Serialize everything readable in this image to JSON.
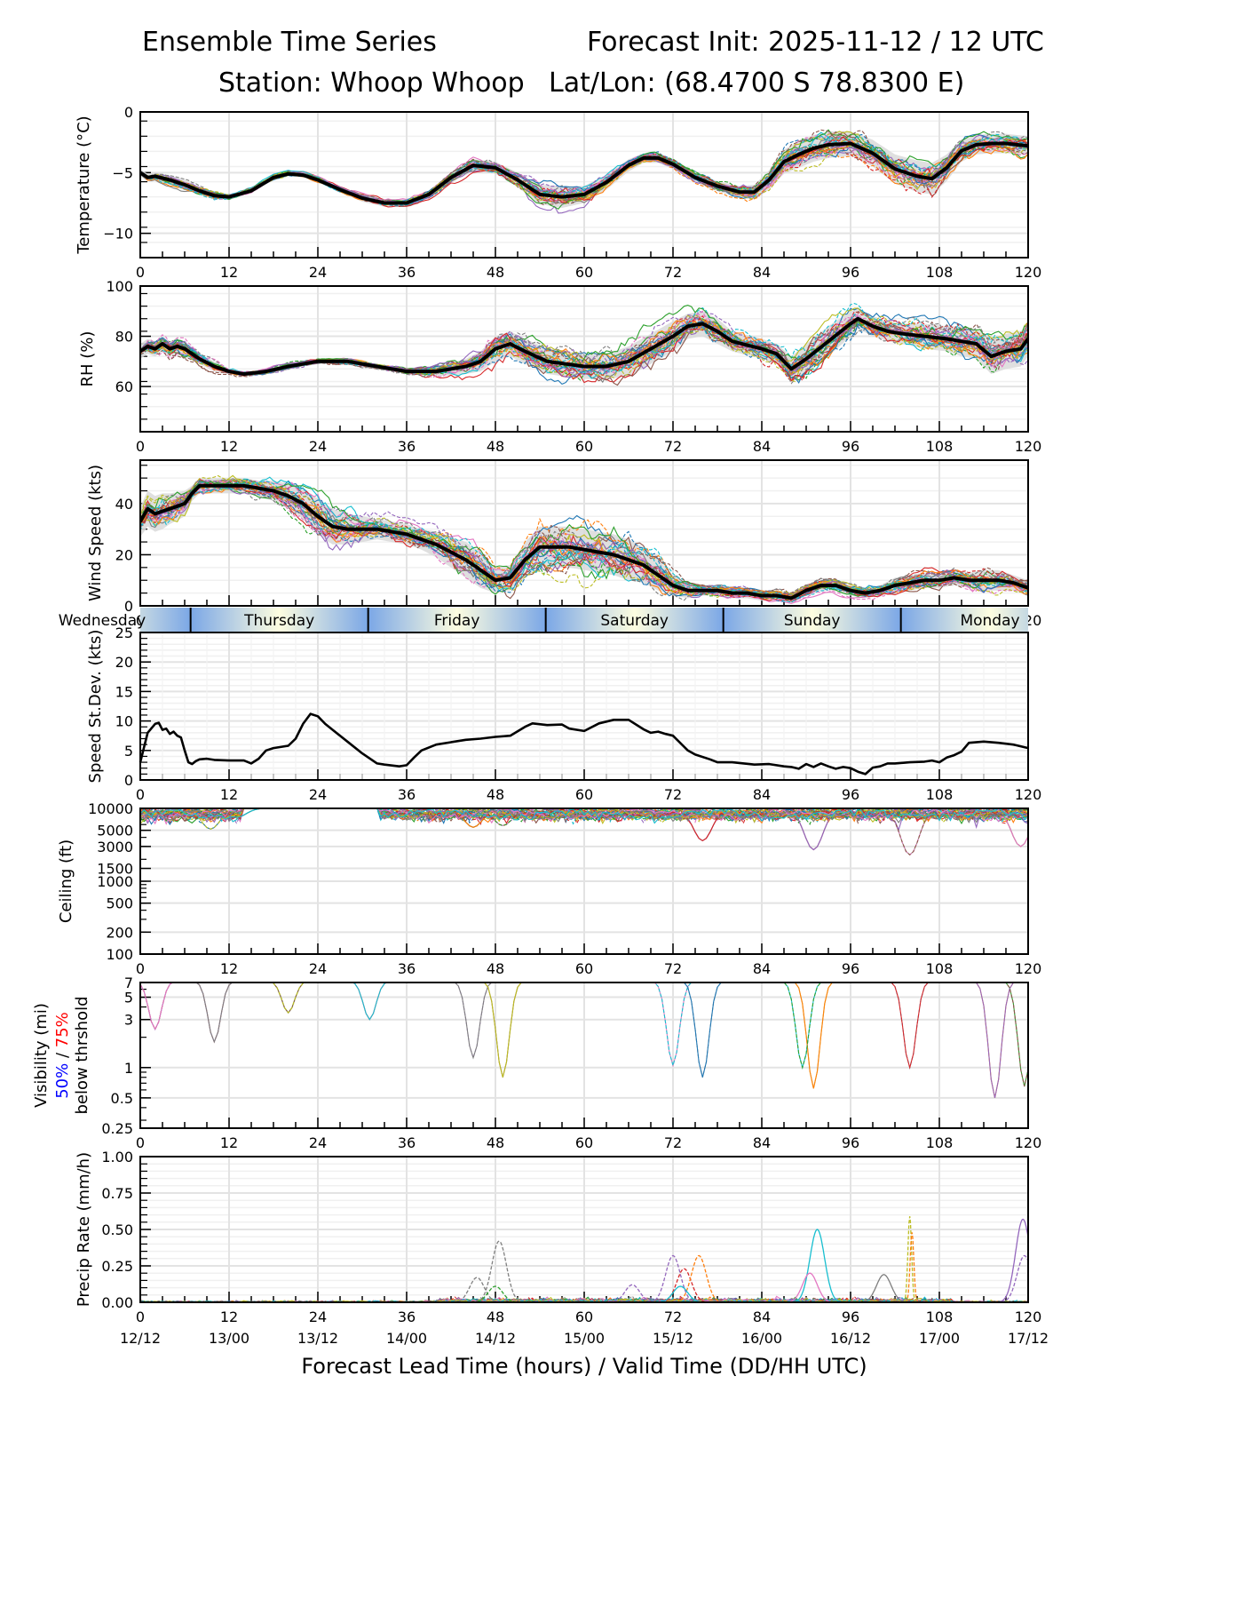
{
  "header": {
    "title_left": "Ensemble Time Series",
    "title_right": "Forecast Init: 2025-11-12 / 12 UTC",
    "station": "Station: Whoop Whoop",
    "latlon": "Lat/Lon: (68.4700 S 78.8300 E)"
  },
  "chart_data": [
    {
      "id": "temperature",
      "type": "line",
      "ylabel": "Temperature (°C)",
      "ylim": [
        -12,
        0
      ],
      "yticks": [
        0,
        -5,
        -10
      ],
      "ytick_labels": [
        "0",
        "−5",
        "−10"
      ],
      "xlim": [
        0,
        120
      ],
      "xticks": [
        0,
        12,
        24,
        36,
        48,
        60,
        72,
        84,
        96,
        108,
        120
      ],
      "grid": true,
      "mean": {
        "x": [
          0,
          1,
          2,
          4,
          6,
          8,
          10,
          12,
          15,
          18,
          20,
          22,
          24,
          27,
          30,
          33,
          36,
          39,
          42,
          45,
          48,
          51,
          54,
          57,
          60,
          63,
          66,
          68,
          70,
          72,
          75,
          78,
          81,
          83,
          85,
          87,
          89,
          91,
          93,
          96,
          99,
          102,
          105,
          107,
          109,
          111,
          113,
          115,
          117,
          120
        ],
        "y": [
          -5.0,
          -5.4,
          -5.3,
          -5.6,
          -6.0,
          -6.5,
          -6.9,
          -7.0,
          -6.5,
          -5.4,
          -5.1,
          -5.2,
          -5.6,
          -6.4,
          -7.1,
          -7.5,
          -7.5,
          -6.8,
          -5.4,
          -4.4,
          -4.6,
          -5.6,
          -6.8,
          -7.0,
          -6.8,
          -5.8,
          -4.4,
          -3.8,
          -3.8,
          -4.3,
          -5.4,
          -6.1,
          -6.6,
          -6.6,
          -5.6,
          -4.1,
          -3.5,
          -3.0,
          -2.7,
          -2.6,
          -3.4,
          -4.7,
          -5.3,
          -5.5,
          -4.6,
          -3.2,
          -2.7,
          -2.6,
          -2.6,
          -2.8
        ]
      },
      "spread_halfwidth": [
        0.3,
        0.3,
        0.3,
        0.4,
        0.4,
        0.3,
        0.3,
        0.2,
        0.2,
        0.2,
        0.2,
        0.2,
        0.2,
        0.2,
        0.3,
        0.3,
        0.3,
        0.3,
        0.4,
        0.5,
        0.5,
        0.6,
        0.8,
        0.9,
        0.7,
        0.6,
        0.5,
        0.4,
        0.4,
        0.4,
        0.4,
        0.4,
        0.5,
        0.6,
        0.8,
        1.0,
        1.1,
        1.1,
        1.1,
        1.0,
        1.1,
        1.2,
        1.3,
        1.3,
        1.1,
        0.9,
        0.8,
        0.8,
        0.8,
        0.8
      ],
      "member_count": 30,
      "members_note": "ensemble members drawn as thin colored solid/dashed lines around the mean"
    },
    {
      "id": "rh",
      "type": "line",
      "ylabel": "RH (%)",
      "ylim": [
        42,
        100
      ],
      "yticks": [
        60,
        80,
        100
      ],
      "ytick_labels": [
        "60",
        "80",
        "100"
      ],
      "xlim": [
        0,
        120
      ],
      "xticks": [
        0,
        12,
        24,
        36,
        48,
        60,
        72,
        84,
        96,
        108,
        120
      ],
      "grid": true,
      "mean": {
        "x": [
          0,
          1,
          2,
          3,
          4,
          5,
          6,
          8,
          10,
          12,
          14,
          17,
          20,
          24,
          28,
          32,
          36,
          40,
          44,
          46,
          48,
          50,
          52,
          55,
          60,
          63,
          66,
          69,
          72,
          74,
          76,
          78,
          80,
          84,
          86,
          88,
          90,
          93,
          96,
          97,
          99,
          101,
          103,
          106,
          109,
          111,
          113,
          115,
          117,
          119,
          120
        ],
        "y": [
          74,
          76,
          75,
          77,
          75,
          76,
          75,
          71,
          68,
          66,
          65,
          66,
          68,
          70,
          70,
          68,
          66,
          66,
          68,
          70,
          75,
          77,
          74,
          70,
          68,
          68,
          70,
          75,
          80,
          84,
          85,
          82,
          78,
          75,
          73,
          67,
          71,
          78,
          85,
          87,
          84,
          82,
          81,
          80,
          79,
          78,
          77,
          72,
          74,
          75,
          79
        ]
      },
      "spread_halfwidth": [
        3,
        3,
        3,
        3,
        3,
        3,
        3,
        2,
        2,
        1,
        1,
        1,
        1,
        1,
        1,
        1,
        1,
        2,
        3,
        4,
        5,
        5,
        5,
        5,
        5,
        5,
        6,
        6,
        6,
        5,
        5,
        5,
        4,
        4,
        4,
        5,
        6,
        6,
        5,
        4,
        4,
        4,
        4,
        5,
        5,
        6,
        6,
        7,
        7,
        7,
        7
      ],
      "member_count": 30
    },
    {
      "id": "wind_speed",
      "type": "line",
      "ylabel": "Wind Speed (kts)",
      "ylim": [
        0,
        57
      ],
      "yticks": [
        0,
        20,
        40
      ],
      "ytick_labels": [
        "0",
        "20",
        "40"
      ],
      "xlim": [
        0,
        120
      ],
      "xticks": [
        0,
        12,
        24,
        36,
        48,
        60,
        72,
        84,
        96,
        108,
        120
      ],
      "grid": true,
      "mean": {
        "x": [
          0,
          1,
          2,
          3,
          4,
          6,
          7,
          8,
          10,
          12,
          14,
          16,
          18,
          20,
          22,
          24,
          26,
          28,
          30,
          32,
          34,
          36,
          38,
          40,
          42,
          44,
          46,
          48,
          50,
          52,
          54,
          56,
          58,
          60,
          62,
          64,
          66,
          68,
          70,
          72,
          74,
          76,
          78,
          80,
          82,
          84,
          86,
          88,
          90,
          92,
          94,
          96,
          98,
          100,
          102,
          104,
          106,
          108,
          110,
          112,
          114,
          116,
          118,
          120
        ],
        "y": [
          33,
          38,
          36,
          37,
          38,
          40,
          44,
          47,
          47,
          47,
          47,
          46,
          45,
          43,
          40,
          35,
          31,
          30,
          30,
          30,
          29,
          28,
          26,
          24,
          21,
          18,
          14,
          10,
          11,
          18,
          23,
          23,
          23,
          22,
          21,
          20,
          18,
          16,
          12,
          8,
          6,
          6,
          6,
          5,
          5,
          4,
          4,
          3,
          6,
          8,
          8,
          6,
          5,
          6,
          8,
          9,
          10,
          10,
          11,
          10,
          10,
          10,
          9,
          7
        ]
      },
      "spread_halfwidth": [
        6,
        7,
        7,
        7,
        6,
        5,
        3,
        3,
        3,
        3,
        3,
        3,
        4,
        5,
        6,
        7,
        7,
        6,
        5,
        4,
        4,
        4,
        4,
        5,
        6,
        7,
        7,
        5,
        5,
        7,
        8,
        8,
        8,
        8,
        8,
        8,
        8,
        7,
        6,
        4,
        3,
        2,
        2,
        2,
        2,
        2,
        2,
        2,
        2,
        2,
        2,
        2,
        2,
        2,
        3,
        3,
        3,
        3,
        3,
        3,
        4,
        4,
        3,
        3
      ],
      "member_count": 30
    },
    {
      "id": "speed_stdev",
      "type": "line",
      "ylabel": "Speed St.Dev. (kts)",
      "ylim": [
        0,
        25
      ],
      "yticks": [
        0,
        5,
        10,
        15,
        20,
        25
      ],
      "ytick_labels": [
        "0",
        "5",
        "10",
        "15",
        "20",
        "25"
      ],
      "xlim": [
        0,
        120
      ],
      "xticks": [
        0,
        12,
        24,
        36,
        48,
        60,
        72,
        84,
        96,
        108,
        120
      ],
      "grid": true,
      "series": [
        {
          "name": "Speed St.Dev.",
          "x": [
            0,
            1,
            2,
            2.5,
            3,
            3.5,
            4,
            4.5,
            5,
            5.5,
            6,
            6.5,
            7,
            7.5,
            8,
            9,
            10,
            12,
            14,
            15,
            16,
            17,
            18,
            20,
            21,
            22,
            23,
            24,
            25,
            26,
            28,
            30,
            32,
            33,
            35,
            36,
            37,
            38,
            40,
            42,
            44,
            46,
            48,
            50,
            52,
            53,
            55,
            57,
            58,
            60,
            62,
            64,
            66,
            68,
            69,
            70,
            71,
            72,
            74,
            75,
            77,
            78,
            80,
            83,
            85,
            87,
            88,
            89,
            90,
            91,
            92,
            93,
            94,
            95,
            96,
            97,
            98,
            99,
            100,
            101,
            102,
            104,
            106,
            107,
            108,
            109,
            110,
            111,
            112,
            114,
            116,
            118,
            120
          ],
          "y": [
            3,
            8,
            9.5,
            9.7,
            8.5,
            8.7,
            7.8,
            8.2,
            7.5,
            7.2,
            5,
            3,
            2.7,
            3.2,
            3.5,
            3.6,
            3.4,
            3.3,
            3.3,
            2.8,
            3.6,
            5,
            5.4,
            5.8,
            7,
            9.5,
            11.2,
            10.8,
            9.5,
            8.5,
            6.5,
            4.5,
            2.8,
            2.6,
            2.3,
            2.5,
            3.8,
            5,
            6,
            6.4,
            6.8,
            7,
            7.3,
            7.5,
            9,
            9.6,
            9.3,
            9.4,
            8.7,
            8.3,
            9.6,
            10.2,
            10.2,
            8.6,
            8,
            8.2,
            7.8,
            7.5,
            5,
            4.3,
            3.5,
            3.0,
            3.0,
            2.6,
            2.7,
            2.3,
            2.2,
            1.9,
            2.7,
            2.2,
            2.8,
            2.3,
            1.9,
            2.2,
            2.0,
            1.4,
            1.0,
            2.1,
            2.3,
            2.8,
            2.8,
            3.0,
            3.1,
            3.3,
            3.0,
            3.8,
            4.2,
            4.8,
            6.3,
            6.5,
            6.3,
            6.0,
            5.4
          ]
        }
      ]
    },
    {
      "id": "ceiling",
      "type": "line",
      "yscale": "log",
      "ylabel": "Ceiling (ft)",
      "ylim": [
        100,
        10000
      ],
      "yticks": [
        100,
        200,
        500,
        1000,
        1500,
        3000,
        5000,
        10000
      ],
      "ytick_labels": [
        "100",
        "200",
        "500",
        "1000",
        "1500",
        "3000",
        "5000",
        "10000"
      ],
      "xlim": [
        0,
        120
      ],
      "xticks": [
        0,
        12,
        24,
        36,
        48,
        60,
        72,
        84,
        96,
        108,
        120
      ],
      "grid": true,
      "member_minima": [
        {
          "x": 4,
          "y": 7000
        },
        {
          "x": 9.5,
          "y": 5200
        },
        {
          "x": 13,
          "y": 7500
        },
        {
          "x": 45,
          "y": 5500
        },
        {
          "x": 49,
          "y": 5800
        },
        {
          "x": 76,
          "y": 3600
        },
        {
          "x": 91,
          "y": 2700
        },
        {
          "x": 104,
          "y": 2300
        },
        {
          "x": 119,
          "y": 3000
        }
      ],
      "member_count": 30
    },
    {
      "id": "visibility",
      "type": "line",
      "yscale": "log",
      "ylabel": "Visibility (mi)",
      "ylabel_extra": {
        "p50": "50%",
        "sep": " / ",
        "p75": "75%",
        "line3": "below thrshold"
      },
      "threshold_colors": {
        "p50": "#0000ff",
        "p75": "#ff0000"
      },
      "ylim": [
        0.25,
        7
      ],
      "yticks": [
        0.25,
        0.5,
        1,
        3,
        5,
        7
      ],
      "ytick_labels": [
        "0.25",
        "0.5",
        "1",
        "3",
        "5",
        "7"
      ],
      "xlim": [
        0,
        120
      ],
      "xticks": [
        0,
        12,
        24,
        36,
        48,
        60,
        72,
        84,
        96,
        108,
        120
      ],
      "grid": true,
      "member_minima": [
        {
          "x": 2,
          "y": 2.4
        },
        {
          "x": 10,
          "y": 1.8
        },
        {
          "x": 20,
          "y": 3.5
        },
        {
          "x": 31,
          "y": 3.0
        },
        {
          "x": 45,
          "y": 1.25
        },
        {
          "x": 49,
          "y": 0.8
        },
        {
          "x": 72,
          "y": 1.05
        },
        {
          "x": 76,
          "y": 0.8
        },
        {
          "x": 91,
          "y": 0.62
        },
        {
          "x": 89.5,
          "y": 1.0
        },
        {
          "x": 104,
          "y": 1.0
        },
        {
          "x": 115.5,
          "y": 0.5
        },
        {
          "x": 119.5,
          "y": 0.65
        }
      ],
      "member_count": 30
    },
    {
      "id": "precip_rate",
      "type": "line",
      "ylabel": "Precip Rate (mm/h)",
      "ylim": [
        0,
        1.0
      ],
      "yticks": [
        0,
        0.25,
        0.5,
        0.75,
        1.0
      ],
      "ytick_labels": [
        "0.00",
        "0.25",
        "0.50",
        "0.75",
        "1.00"
      ],
      "xlim": [
        0,
        120
      ],
      "xticks": [
        0,
        12,
        24,
        36,
        48,
        60,
        72,
        84,
        96,
        108,
        120
      ],
      "xtick_labels_hours": [
        "0",
        "12",
        "24",
        "36",
        "48",
        "60",
        "72",
        "84",
        "96",
        "108",
        "120"
      ],
      "xtick_labels_valid": [
        "12/12",
        "13/00",
        "13/12",
        "14/00",
        "14/12",
        "15/00",
        "15/12",
        "16/00",
        "16/12",
        "17/00",
        "17/12"
      ],
      "xlabel": "Forecast Lead Time (hours) / Valid Time (DD/HH UTC)",
      "grid": true,
      "member_peaks": [
        {
          "x": 48.5,
          "y": 0.42,
          "color": "#7f7f7f",
          "dash": true
        },
        {
          "x": 45.5,
          "y": 0.17,
          "color": "#7f7f7f",
          "dash": true
        },
        {
          "x": 48,
          "y": 0.11,
          "color": "#2ca02c",
          "dash": true
        },
        {
          "x": 72,
          "y": 0.32,
          "color": "#9467bd",
          "dash": true
        },
        {
          "x": 73.5,
          "y": 0.23,
          "color": "#d62728",
          "dash": true
        },
        {
          "x": 75.5,
          "y": 0.32,
          "color": "#ff7f0e",
          "dash": true
        },
        {
          "x": 73,
          "y": 0.11,
          "color": "#17becf",
          "dash": false
        },
        {
          "x": 66.5,
          "y": 0.12,
          "color": "#9467bd",
          "dash": true
        },
        {
          "x": 91.5,
          "y": 0.5,
          "color": "#17becf",
          "dash": false
        },
        {
          "x": 90.5,
          "y": 0.2,
          "color": "#e377c2",
          "dash": false
        },
        {
          "x": 100.5,
          "y": 0.19,
          "color": "#7f7f7f",
          "dash": false
        },
        {
          "x": 104,
          "y": 0.59,
          "color": "#bcbd22",
          "dash": true
        },
        {
          "x": 104.3,
          "y": 0.48,
          "color": "#ff7f0e",
          "dash": true
        },
        {
          "x": 119.3,
          "y": 0.57,
          "color": "#9467bd",
          "dash": false
        },
        {
          "x": 119.5,
          "y": 0.32,
          "color": "#9467bd",
          "dash": true
        }
      ],
      "member_count": 30
    }
  ],
  "day_band": {
    "labels": [
      "Wednesday",
      "Thursday",
      "Friday",
      "Saturday",
      "Sunday",
      "Monday"
    ],
    "boundaries_hours": [
      6.8,
      30.8,
      54.8,
      78.8,
      102.8
    ],
    "colors": {
      "night": "#7ba7e6",
      "day": "#fdfde0"
    }
  },
  "member_colors": [
    "#1f77b4",
    "#ff7f0e",
    "#2ca02c",
    "#d62728",
    "#9467bd",
    "#8c564b",
    "#e377c2",
    "#7f7f7f",
    "#bcbd22",
    "#17becf"
  ],
  "mean_color": "#000000",
  "spread_color": "#d9d9d9"
}
